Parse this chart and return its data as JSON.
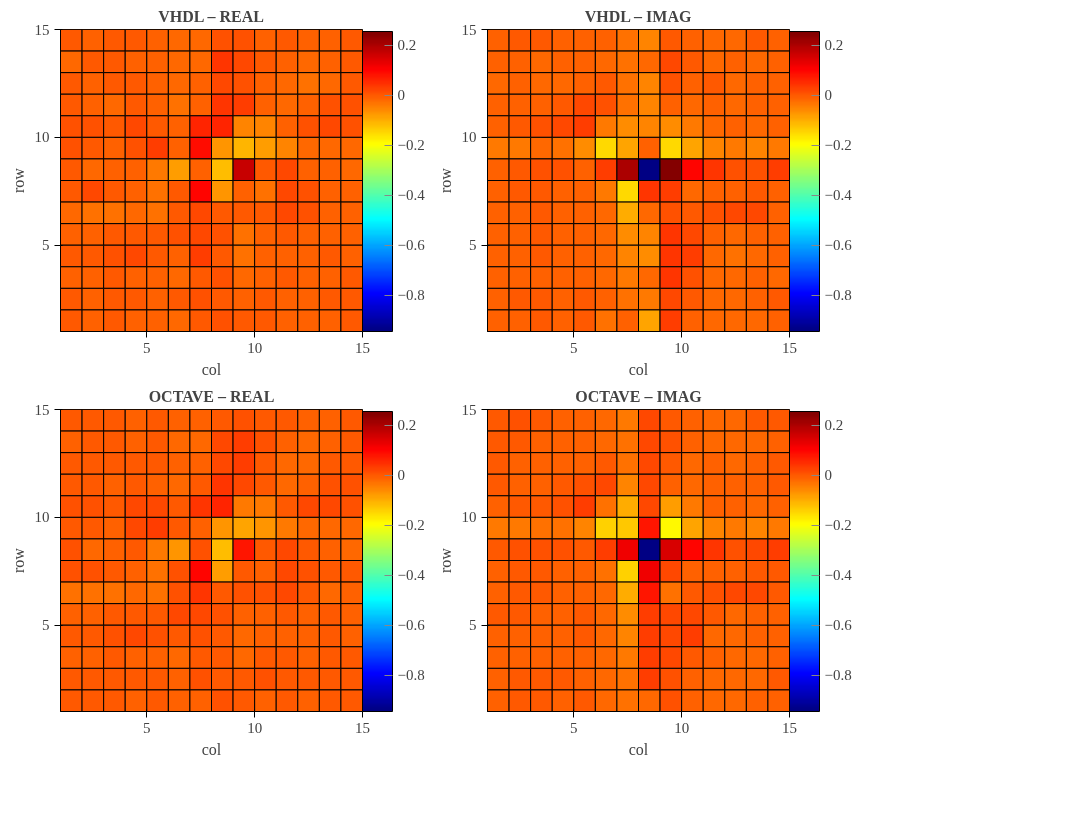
{
  "chart_data": [
    {
      "type": "heatmap",
      "title": "VHDL – REAL",
      "xlabel": "col",
      "ylabel": "row",
      "xlim": [
        1,
        15
      ],
      "ylim": [
        1,
        15
      ],
      "xticks": [
        5,
        10,
        15
      ],
      "yticks": [
        5,
        10,
        15
      ],
      "clim": [
        -0.945,
        0.255
      ],
      "cticks": [
        -0.8,
        -0.6,
        -0.4,
        -0.2,
        0,
        0.2
      ],
      "cells": [
        [
          0,
          -0.01,
          0,
          0,
          -0.01,
          -0.02,
          -0.02,
          0.01,
          0.01,
          -0.01,
          0,
          -0.01,
          -0.01,
          0
        ],
        [
          -0.02,
          0,
          0,
          -0.01,
          -0.01,
          -0.02,
          -0.02,
          0.04,
          0.02,
          0,
          -0.01,
          -0.02,
          -0.01,
          0
        ],
        [
          0,
          -0.01,
          0,
          0,
          -0.01,
          -0.02,
          -0.01,
          0.02,
          0.01,
          -0.01,
          -0.02,
          -0.03,
          -0.02,
          0
        ],
        [
          0,
          -0.01,
          -0.02,
          0,
          -0.01,
          -0.03,
          -0.01,
          0.04,
          0.03,
          -0.01,
          -0.02,
          -0.01,
          0.01,
          0.01
        ],
        [
          0.01,
          0.01,
          0,
          0.02,
          0,
          -0.01,
          0.06,
          0.06,
          -0.05,
          -0.05,
          -0.01,
          0.01,
          0.02,
          0.01
        ],
        [
          0.01,
          0,
          -0.01,
          0.01,
          0.03,
          -0.01,
          0.09,
          -0.07,
          -0.11,
          -0.08,
          -0.05,
          -0.02,
          -0.02,
          -0.02
        ],
        [
          0,
          -0.02,
          -0.01,
          -0.01,
          -0.04,
          -0.08,
          -0.01,
          -0.12,
          0.17,
          0,
          0.02,
          -0.01,
          -0.01,
          -0.02
        ],
        [
          0,
          0.02,
          0,
          -0.01,
          -0.03,
          0,
          0.1,
          -0.07,
          -0.01,
          -0.03,
          0.02,
          0.01,
          -0.01,
          -0.01
        ],
        [
          -0.02,
          -0.03,
          -0.03,
          -0.02,
          -0.03,
          0,
          0.02,
          0,
          0,
          0,
          0.02,
          0.01,
          -0.01,
          -0.01
        ],
        [
          -0.01,
          -0.01,
          0,
          0,
          0,
          0.01,
          0.02,
          0.01,
          -0.03,
          -0.01,
          0,
          -0.01,
          -0.01,
          -0.01
        ],
        [
          0,
          0,
          0.01,
          0.02,
          0,
          -0.01,
          0.03,
          0,
          -0.03,
          -0.01,
          -0.01,
          -0.01,
          0,
          -0.01
        ],
        [
          -0.01,
          -0.01,
          0,
          -0.01,
          -0.01,
          -0.02,
          0,
          0.01,
          -0.02,
          -0.01,
          0,
          -0.01,
          -0.01,
          0
        ],
        [
          0,
          -0.01,
          0,
          0,
          -0.01,
          0,
          0.01,
          0,
          -0.01,
          0,
          -0.01,
          -0.01,
          0,
          0
        ],
        [
          0,
          -0.01,
          0,
          -0.01,
          -0.01,
          -0.02,
          0,
          0.01,
          0,
          0,
          -0.01,
          -0.01,
          -0.01,
          0
        ]
      ]
    },
    {
      "type": "heatmap",
      "title": "VHDL – IMAG",
      "xlabel": "col",
      "ylabel": "row",
      "xlim": [
        1,
        15
      ],
      "ylim": [
        1,
        15
      ],
      "xticks": [
        5,
        10,
        15
      ],
      "yticks": [
        5,
        10,
        15
      ],
      "clim": [
        -0.945,
        0.255
      ],
      "cticks": [
        -0.8,
        -0.6,
        -0.4,
        -0.2,
        0,
        0.2
      ],
      "cells": [
        [
          -0.01,
          0,
          0,
          -0.01,
          -0.01,
          -0.01,
          -0.03,
          -0.05,
          0,
          -0.01,
          -0.02,
          -0.02,
          0,
          -0.01
        ],
        [
          -0.01,
          -0.01,
          -0.02,
          -0.01,
          -0.01,
          -0.02,
          -0.03,
          -0.02,
          0.02,
          0,
          -0.02,
          -0.01,
          -0.02,
          -0.01
        ],
        [
          -0.02,
          -0.01,
          -0.02,
          -0.02,
          -0.01,
          0,
          -0.03,
          -0.05,
          0.01,
          -0.01,
          0,
          -0.02,
          -0.01,
          -0.01
        ],
        [
          -0.01,
          -0.01,
          -0.01,
          0,
          0.02,
          0.01,
          -0.03,
          -0.05,
          -0.01,
          -0.02,
          -0.01,
          -0.02,
          -0.01,
          -0.01
        ],
        [
          -0.01,
          0,
          0.01,
          0.02,
          0.03,
          -0.04,
          -0.06,
          -0.05,
          -0.06,
          -0.04,
          -0.02,
          -0.01,
          -0.02,
          -0.01
        ],
        [
          -0.04,
          -0.04,
          -0.02,
          -0.03,
          -0.06,
          -0.15,
          -0.09,
          -0.01,
          -0.15,
          -0.09,
          -0.05,
          -0.04,
          -0.05,
          -0.04
        ],
        [
          -0.01,
          0,
          0.01,
          0.01,
          -0.01,
          0.03,
          0.2,
          -0.94,
          0.25,
          0.1,
          0.04,
          0.01,
          0.01,
          0.03
        ],
        [
          -0.01,
          0,
          0,
          -0.01,
          -0.01,
          -0.04,
          -0.15,
          0.04,
          0.03,
          -0.02,
          -0.01,
          -0.01,
          0,
          -0.01
        ],
        [
          -0.01,
          -0.01,
          0,
          -0.01,
          -0.01,
          -0.02,
          -0.1,
          -0.02,
          0.01,
          0,
          0.01,
          0.02,
          0.02,
          -0.01
        ],
        [
          -0.01,
          -0.01,
          0,
          -0.01,
          -0.01,
          -0.02,
          -0.06,
          -0.05,
          0.04,
          0.02,
          -0.01,
          -0.02,
          -0.01,
          -0.01
        ],
        [
          -0.01,
          -0.01,
          0,
          -0.01,
          -0.01,
          -0.02,
          -0.05,
          -0.06,
          0.04,
          0.03,
          -0.02,
          -0.03,
          -0.02,
          -0.01
        ],
        [
          -0.01,
          -0.01,
          -0.01,
          -0.01,
          -0.01,
          -0.02,
          -0.04,
          -0.02,
          0.04,
          0.01,
          -0.02,
          -0.02,
          -0.01,
          -0.02
        ],
        [
          -0.01,
          0,
          0,
          -0.01,
          0,
          -0.01,
          -0.03,
          -0.04,
          0.02,
          0,
          -0.02,
          -0.02,
          -0.01,
          0
        ],
        [
          -0.01,
          -0.01,
          0,
          -0.01,
          0,
          -0.03,
          -0.01,
          -0.09,
          0.03,
          -0.01,
          -0.02,
          -0.02,
          -0.02,
          -0.01
        ]
      ]
    },
    {
      "type": "heatmap",
      "title": "OCTAVE – REAL",
      "xlabel": "col",
      "ylabel": "row",
      "xlim": [
        1,
        15
      ],
      "ylim": [
        1,
        15
      ],
      "xticks": [
        5,
        10,
        15
      ],
      "yticks": [
        5,
        10,
        15
      ],
      "clim": [
        -0.945,
        0.255
      ],
      "cticks": [
        -0.8,
        -0.6,
        -0.4,
        -0.2,
        0,
        0.2
      ],
      "cells": [
        [
          0,
          0,
          0,
          -0.01,
          0,
          -0.01,
          -0.01,
          0,
          0.01,
          0,
          0,
          -0.01,
          -0.01,
          0
        ],
        [
          -0.01,
          0,
          0,
          -0.01,
          0,
          -0.02,
          -0.02,
          0.02,
          0.03,
          0.01,
          -0.01,
          -0.02,
          -0.01,
          0
        ],
        [
          0,
          0,
          0,
          0,
          0,
          -0.01,
          -0.01,
          0.02,
          0.03,
          0,
          -0.02,
          -0.02,
          0,
          0
        ],
        [
          0,
          0,
          -0.01,
          0,
          -0.01,
          -0.02,
          0,
          0.04,
          0.02,
          0,
          -0.02,
          -0.01,
          0.01,
          0.01
        ],
        [
          0.01,
          0.01,
          0,
          0.02,
          0.02,
          0,
          0.04,
          0.06,
          -0.04,
          -0.04,
          0,
          0.02,
          0.02,
          0.01
        ],
        [
          0,
          0,
          -0.01,
          0.02,
          0.03,
          0,
          -0.01,
          -0.07,
          -0.09,
          -0.07,
          -0.04,
          -0.02,
          -0.02,
          -0.02
        ],
        [
          0.01,
          -0.02,
          -0.01,
          0,
          -0.04,
          -0.07,
          0.01,
          -0.12,
          0.08,
          0,
          0.02,
          0,
          -0.01,
          -0.02
        ],
        [
          0.01,
          0.01,
          0,
          -0.01,
          -0.03,
          0.01,
          0.1,
          -0.08,
          0,
          -0.01,
          0.02,
          0.01,
          0,
          0
        ],
        [
          -0.03,
          -0.03,
          -0.03,
          -0.02,
          -0.03,
          0.01,
          0.04,
          0,
          0.01,
          0.01,
          0.02,
          0,
          -0.02,
          -0.01
        ],
        [
          -0.01,
          -0.01,
          0,
          0,
          0,
          0.02,
          0.02,
          0.01,
          -0.01,
          -0.01,
          0,
          -0.01,
          0,
          -0.01
        ],
        [
          0,
          0,
          0.01,
          0.02,
          0.01,
          0,
          0.01,
          0,
          -0.02,
          -0.01,
          -0.01,
          -0.01,
          0,
          -0.01
        ],
        [
          -0.01,
          -0.01,
          0,
          -0.01,
          -0.01,
          -0.02,
          0,
          0,
          -0.02,
          0,
          0,
          -0.01,
          0,
          0
        ],
        [
          0,
          0,
          0,
          0,
          0,
          -0.01,
          0.01,
          0,
          0,
          0.01,
          0,
          0,
          0,
          0
        ],
        [
          0,
          0,
          0,
          -0.01,
          0,
          -0.01,
          -0.01,
          0.01,
          0,
          -0.01,
          0,
          -0.01,
          0,
          0
        ]
      ]
    },
    {
      "type": "heatmap",
      "title": "OCTAVE – IMAG",
      "xlabel": "col",
      "ylabel": "row",
      "xlim": [
        1,
        15
      ],
      "ylim": [
        1,
        15
      ],
      "xticks": [
        5,
        10,
        15
      ],
      "yticks": [
        5,
        10,
        15
      ],
      "clim": [
        -0.945,
        0.255
      ],
      "cticks": [
        -0.8,
        -0.6,
        -0.4,
        -0.2,
        0,
        0.2
      ],
      "cells": [
        [
          0,
          0.01,
          0,
          -0.01,
          -0.01,
          -0.02,
          -0.04,
          0.02,
          0,
          -0.01,
          -0.02,
          -0.02,
          0,
          0
        ],
        [
          0,
          0,
          -0.01,
          -0.01,
          -0.01,
          -0.02,
          -0.03,
          0.02,
          0.01,
          -0.01,
          -0.02,
          -0.02,
          -0.02,
          -0.01
        ],
        [
          0,
          -0.01,
          -0.01,
          -0.01,
          -0.01,
          0,
          -0.03,
          0.02,
          0,
          -0.02,
          -0.01,
          -0.02,
          -0.01,
          0
        ],
        [
          0,
          -0.01,
          -0.01,
          0,
          0.01,
          0.02,
          -0.05,
          0.02,
          -0.01,
          -0.02,
          -0.01,
          -0.01,
          -0.01,
          0
        ],
        [
          -0.01,
          0,
          0,
          0.01,
          0.03,
          -0.03,
          -0.1,
          0.02,
          -0.08,
          -0.04,
          -0.01,
          -0.01,
          -0.02,
          -0.01
        ],
        [
          -0.04,
          -0.04,
          -0.03,
          -0.03,
          -0.05,
          -0.14,
          -0.13,
          0.08,
          -0.19,
          -0.09,
          -0.05,
          -0.04,
          -0.05,
          -0.04
        ],
        [
          0,
          0.01,
          0.01,
          0.01,
          0,
          0.03,
          0.12,
          -0.94,
          0.15,
          0.1,
          0.04,
          0.01,
          0.02,
          0.03
        ],
        [
          -0.01,
          0,
          0,
          -0.01,
          -0.01,
          -0.03,
          -0.14,
          0.12,
          0.02,
          -0.01,
          -0.01,
          -0.01,
          0,
          0
        ],
        [
          -0.01,
          0,
          0,
          -0.01,
          -0.01,
          -0.02,
          -0.1,
          0.08,
          -0.03,
          0,
          0.01,
          0.02,
          0.02,
          0
        ],
        [
          0,
          0,
          -0.01,
          -0.01,
          0,
          -0.02,
          -0.06,
          0.03,
          0.02,
          0.02,
          0,
          -0.02,
          -0.01,
          -0.01
        ],
        [
          -0.01,
          -0.01,
          -0.01,
          -0.01,
          0,
          -0.02,
          -0.05,
          0.03,
          0.02,
          0.03,
          -0.02,
          -0.02,
          -0.01,
          -0.01
        ],
        [
          -0.01,
          -0.01,
          -0.01,
          -0.01,
          -0.01,
          -0.02,
          -0.04,
          0.03,
          0.02,
          0,
          -0.01,
          -0.02,
          -0.02,
          -0.01
        ],
        [
          -0.01,
          0,
          0,
          0,
          -0.01,
          -0.02,
          -0.03,
          0.03,
          0.01,
          -0.01,
          -0.02,
          -0.02,
          -0.02,
          0
        ],
        [
          -0.01,
          0,
          0,
          -0.01,
          0,
          -0.02,
          -0.03,
          -0.02,
          0.01,
          -0.01,
          -0.02,
          -0.02,
          -0.01,
          -0.01
        ]
      ]
    }
  ]
}
